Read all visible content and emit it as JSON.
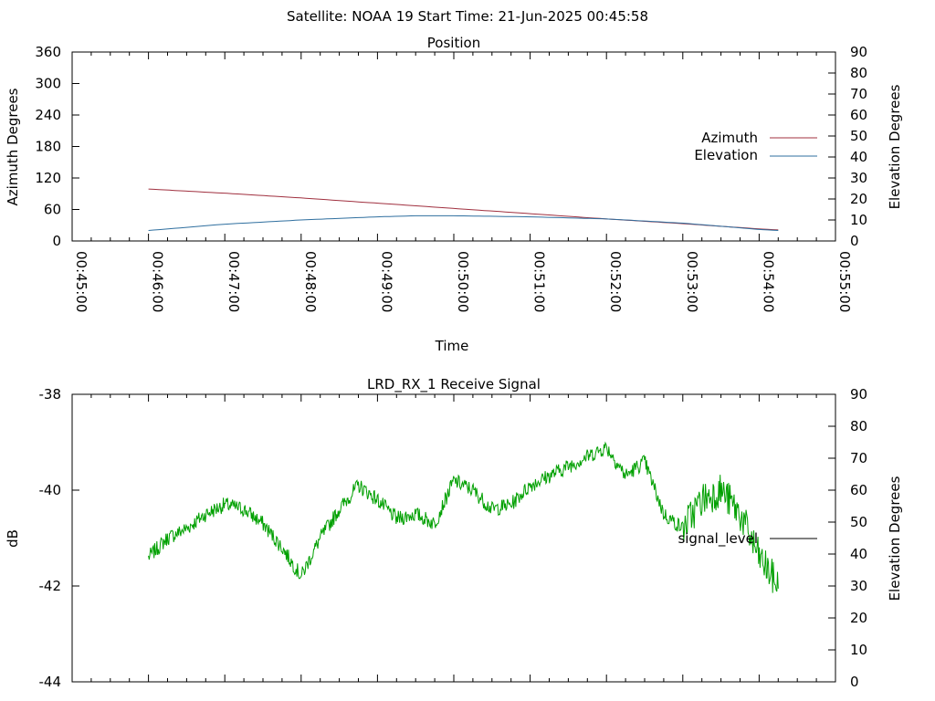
{
  "header": {
    "title": "Satellite: NOAA 19    Start Time: 21-Jun-2025 00:45:58"
  },
  "chart_data": [
    {
      "type": "line",
      "title": "Position",
      "xlabel": "Time",
      "ylabel": "Azimuth Degrees",
      "y2label": "Elevation Degrees",
      "x_ticks": [
        "00:45:00",
        "00:46:00",
        "00:47:00",
        "00:48:00",
        "00:49:00",
        "00:50:00",
        "00:51:00",
        "00:52:00",
        "00:53:00",
        "00:54:00",
        "00:55:00"
      ],
      "ylim": [
        0,
        360
      ],
      "y_ticks": [
        "0",
        "60",
        "120",
        "180",
        "240",
        "300",
        "360"
      ],
      "y2lim": [
        0,
        90
      ],
      "y2_ticks": [
        "0",
        "10",
        "20",
        "30",
        "40",
        "50",
        "60",
        "70",
        "80",
        "90"
      ],
      "legend_position": "right",
      "colors": {
        "azimuth": "#a0303f",
        "elevation": "#2f6f9f"
      },
      "series": [
        {
          "name": "Azimuth",
          "axis": "left",
          "x_minutes": [
            1.0,
            2.0,
            3.0,
            4.0,
            5.0,
            6.0,
            7.0,
            8.0,
            9.0,
            9.25
          ],
          "values": [
            99,
            91,
            82,
            72,
            62,
            52,
            42,
            33,
            23,
            21
          ]
        },
        {
          "name": "Elevation",
          "axis": "right",
          "x_minutes": [
            1.0,
            2.0,
            3.0,
            4.0,
            4.5,
            5.0,
            6.0,
            7.0,
            8.0,
            9.0,
            9.25
          ],
          "values": [
            5,
            8,
            10,
            11.5,
            12,
            12,
            11.5,
            10.5,
            8.5,
            5.5,
            5
          ]
        }
      ]
    },
    {
      "type": "line",
      "title": "LRD_RX_1 Receive Signal",
      "xlabel": "",
      "ylabel": "dB",
      "y2label": "Elevation Degrees",
      "ylim": [
        -44,
        -38
      ],
      "y_ticks": [
        "-38",
        "-40",
        "-42",
        "-44"
      ],
      "y2lim": [
        0,
        90
      ],
      "y2_ticks": [
        "0",
        "10",
        "20",
        "30",
        "40",
        "50",
        "60",
        "70",
        "80",
        "90"
      ],
      "legend_position": "right",
      "colors": {
        "signal": "#00a000",
        "legend_line": "#000000"
      },
      "series": [
        {
          "name": "signal_level",
          "axis": "left",
          "x_minutes": [
            1.0,
            1.25,
            1.5,
            1.75,
            2.0,
            2.25,
            2.5,
            2.75,
            3.0,
            3.25,
            3.5,
            3.75,
            4.0,
            4.25,
            4.5,
            4.75,
            5.0,
            5.25,
            5.5,
            5.75,
            6.0,
            6.25,
            6.5,
            6.75,
            7.0,
            7.25,
            7.5,
            7.75,
            8.0,
            8.25,
            8.5,
            8.75,
            9.0,
            9.25
          ],
          "values": [
            -41.4,
            -41.0,
            -40.8,
            -40.5,
            -40.3,
            -40.4,
            -40.7,
            -41.2,
            -41.8,
            -41.0,
            -40.4,
            -39.9,
            -40.2,
            -40.6,
            -40.5,
            -40.7,
            -39.8,
            -40.0,
            -40.4,
            -40.3,
            -39.9,
            -39.7,
            -39.5,
            -39.3,
            -39.1,
            -39.7,
            -39.4,
            -40.5,
            -40.8,
            -40.2,
            -40.0,
            -40.5,
            -41.4,
            -42.0
          ]
        }
      ],
      "legend_entry": "signal_level"
    }
  ]
}
